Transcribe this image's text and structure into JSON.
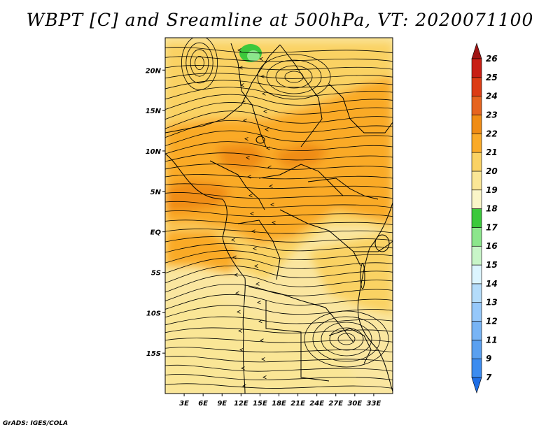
{
  "title": "WBPT [C] and Sreamline at 500hPa, VT: 2020071100",
  "credit": "GrADS: IGES/COLA",
  "map": {
    "region": "Central and Eastern Africa",
    "lon_range": [
      0,
      36
    ],
    "lat_range": [
      -20,
      24
    ],
    "lat_ticks": [
      {
        "value": 20,
        "label": "20N"
      },
      {
        "value": 15,
        "label": "15N"
      },
      {
        "value": 10,
        "label": "10N"
      },
      {
        "value": 5,
        "label": "5N"
      },
      {
        "value": 0,
        "label": "EQ"
      },
      {
        "value": -5,
        "label": "5S"
      },
      {
        "value": -10,
        "label": "10S"
      },
      {
        "value": -15,
        "label": "15S"
      }
    ],
    "lon_ticks": [
      {
        "value": 3,
        "label": "3E"
      },
      {
        "value": 6,
        "label": "6E"
      },
      {
        "value": 9,
        "label": "9E"
      },
      {
        "value": 12,
        "label": "12E"
      },
      {
        "value": 15,
        "label": "15E"
      },
      {
        "value": 18,
        "label": "18E"
      },
      {
        "value": 21,
        "label": "21E"
      },
      {
        "value": 24,
        "label": "24E"
      },
      {
        "value": 27,
        "label": "27E"
      },
      {
        "value": 30,
        "label": "30E"
      },
      {
        "value": 33,
        "label": "33E"
      }
    ]
  },
  "colorbar": {
    "levels": [
      "7",
      "9",
      "11",
      "12",
      "13",
      "14",
      "15",
      "16",
      "17",
      "18",
      "19",
      "20",
      "21",
      "22",
      "23",
      "24",
      "25",
      "26"
    ],
    "colors": [
      "#1e6ee6",
      "#3c8cf0",
      "#5aa0f0",
      "#78b4f5",
      "#96c8fa",
      "#b4dcfa",
      "#dcf5ff",
      "#c8f5c8",
      "#8ce68c",
      "#3cc83c",
      "#faf5c8",
      "#fae696",
      "#fad264",
      "#faaa28",
      "#f08c14",
      "#e6641e",
      "#dc3c14",
      "#c81e14",
      "#a01414"
    ]
  },
  "colors": {
    "background": "#fae6a0",
    "coastline": "#000000",
    "streamline": "#000000"
  }
}
